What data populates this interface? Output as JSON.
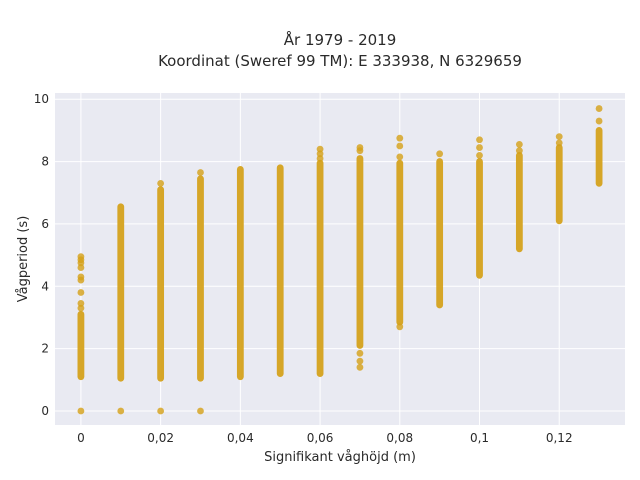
{
  "chart_data": {
    "type": "scatter",
    "title": "År 1979 - 2019",
    "subtitle": "Koordinat (Sweref 99 TM): E 333938, N 6329659",
    "xlabel": "Signifikant våghöjd (m)",
    "ylabel": "Vågperiod (s)",
    "xlim": [
      -0.0065,
      0.1365
    ],
    "ylim": [
      -0.45,
      10.2
    ],
    "x_ticks": [
      0,
      0.02,
      0.04,
      0.06,
      0.08,
      0.1,
      0.12
    ],
    "x_tick_labels": [
      "0",
      "0,02",
      "0,04",
      "0,06",
      "0,08",
      "0,1",
      "0,12"
    ],
    "y_ticks": [
      0,
      2,
      4,
      6,
      8,
      10
    ],
    "y_tick_labels": [
      "0",
      "2",
      "4",
      "6",
      "8",
      "10"
    ],
    "grid": true,
    "legend": "none",
    "marker_color": "#D4A017",
    "background_color": "#E9EAF2",
    "columns": [
      {
        "x": 0,
        "range": [
          1.1,
          3.1
        ],
        "points": [
          0,
          3.3,
          3.45,
          3.8,
          4.2,
          4.3,
          4.6,
          4.75,
          4.85,
          4.95
        ]
      },
      {
        "x": 0.01,
        "range": [
          1.05,
          6.55
        ],
        "points": [
          0
        ]
      },
      {
        "x": 0.02,
        "range": [
          1.05,
          7.1
        ],
        "points": [
          0,
          7.3
        ]
      },
      {
        "x": 0.03,
        "range": [
          1.05,
          7.45
        ],
        "points": [
          0,
          7.65
        ]
      },
      {
        "x": 0.04,
        "range": [
          1.1,
          7.75
        ],
        "points": []
      },
      {
        "x": 0.05,
        "range": [
          1.2,
          7.8
        ],
        "points": []
      },
      {
        "x": 0.06,
        "range": [
          1.2,
          7.95
        ],
        "points": [
          8.1,
          8.25,
          8.4
        ]
      },
      {
        "x": 0.07,
        "range": [
          2.1,
          8.1
        ],
        "points": [
          1.4,
          1.6,
          1.85,
          8.35,
          8.45
        ]
      },
      {
        "x": 0.08,
        "range": [
          2.85,
          7.95
        ],
        "points": [
          2.7,
          8.15,
          8.5,
          8.75
        ]
      },
      {
        "x": 0.09,
        "range": [
          3.4,
          8.0
        ],
        "points": [
          8.25
        ]
      },
      {
        "x": 0.1,
        "range": [
          4.35,
          8.0
        ],
        "points": [
          8.2,
          8.45,
          8.7
        ]
      },
      {
        "x": 0.11,
        "range": [
          5.2,
          8.2
        ],
        "points": [
          8.35,
          8.55
        ]
      },
      {
        "x": 0.12,
        "range": [
          6.1,
          8.45
        ],
        "points": [
          8.6,
          8.8
        ]
      },
      {
        "x": 0.13,
        "range": [
          7.3,
          9.0
        ],
        "points": [
          9.3,
          9.7
        ]
      }
    ]
  }
}
